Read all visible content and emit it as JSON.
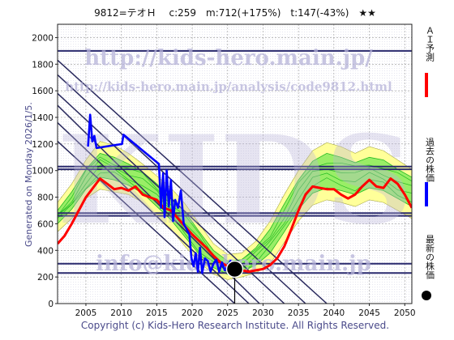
{
  "header": {
    "title": "9812=テオＨ　 c:259　m:712(+175%)　t:147(-43%)　★★"
  },
  "side_label": "Generated on Monday 2026/1/5.",
  "copyright": "Copyright (c) Kids-Hero Research Institute. All Rights Reserved.",
  "watermark": {
    "big": "KIDS",
    "url1": "http://kids-hero.main.jp/",
    "url2": "http://kids-hero.main.jp/analysis/code9812.html",
    "email": "info@kids-hero.main.jp"
  },
  "legend": [
    {
      "label": "ＡＩ予測",
      "color": "#ff0000",
      "kind": "line"
    },
    {
      "label": "過去の株価",
      "color": "#0000ff",
      "kind": "line"
    },
    {
      "label": "最新の株価",
      "color": "#000000",
      "kind": "dot"
    }
  ],
  "colors": {
    "ai": "#ff0000",
    "past": "#0000ff",
    "band_outer": "#ffff99",
    "band_inner": "#99ee66",
    "band_line": "#22bb22",
    "hline": "#2a2a6e",
    "diag": "#2a2a5e",
    "grid": "#999999"
  },
  "chart_data": {
    "type": "line",
    "title": "9812=テオＨ　 c:259　m:712(+175%)　t:147(-43%)　★★",
    "xlim": [
      2001,
      2051
    ],
    "ylim": [
      0,
      2100
    ],
    "x_ticks": [
      2005,
      2010,
      2015,
      2020,
      2025,
      2030,
      2035,
      2040,
      2045,
      2050
    ],
    "y_ticks": [
      0,
      200,
      400,
      600,
      800,
      1000,
      1200,
      1400,
      1600,
      1800,
      2000
    ],
    "grid": true,
    "horizontal_levels": [
      1900,
      1030,
      1010,
      680,
      660,
      300,
      230
    ],
    "diagonal_lines": [
      [
        [
          2001,
          1580
        ],
        [
          2033,
          0
        ]
      ],
      [
        [
          2001,
          1490
        ],
        [
          2029.5,
          0
        ]
      ],
      [
        [
          2001,
          1360
        ],
        [
          2028,
          0
        ]
      ],
      [
        [
          2001,
          1720
        ],
        [
          2036,
          0
        ]
      ],
      [
        [
          2001,
          1830
        ],
        [
          2039,
          0
        ]
      ],
      [
        [
          2001,
          1220
        ],
        [
          2026,
          0
        ]
      ]
    ],
    "band_outer_upper": [
      [
        2001,
        760
      ],
      [
        2003,
        900
      ],
      [
        2005,
        1080
      ],
      [
        2007,
        1220
      ],
      [
        2009,
        1190
      ],
      [
        2011,
        1130
      ],
      [
        2013,
        1050
      ],
      [
        2015,
        960
      ],
      [
        2017,
        870
      ],
      [
        2019,
        750
      ],
      [
        2021,
        600
      ],
      [
        2023,
        450
      ],
      [
        2025,
        370
      ],
      [
        2027,
        380
      ],
      [
        2029,
        470
      ],
      [
        2031,
        620
      ],
      [
        2033,
        820
      ],
      [
        2035,
        1000
      ],
      [
        2037,
        1150
      ],
      [
        2039,
        1210
      ],
      [
        2041,
        1180
      ],
      [
        2043,
        1130
      ],
      [
        2045,
        1180
      ],
      [
        2047,
        1150
      ],
      [
        2049,
        1080
      ],
      [
        2051,
        1010
      ]
    ],
    "band_outer_lower": [
      [
        2001,
        540
      ],
      [
        2003,
        640
      ],
      [
        2005,
        790
      ],
      [
        2007,
        860
      ],
      [
        2009,
        840
      ],
      [
        2011,
        820
      ],
      [
        2013,
        760
      ],
      [
        2015,
        660
      ],
      [
        2017,
        560
      ],
      [
        2019,
        430
      ],
      [
        2021,
        310
      ],
      [
        2023,
        220
      ],
      [
        2025,
        180
      ],
      [
        2027,
        200
      ],
      [
        2029,
        230
      ],
      [
        2031,
        300
      ],
      [
        2033,
        460
      ],
      [
        2035,
        620
      ],
      [
        2037,
        740
      ],
      [
        2039,
        780
      ],
      [
        2041,
        760
      ],
      [
        2043,
        730
      ],
      [
        2045,
        780
      ],
      [
        2047,
        760
      ],
      [
        2049,
        700
      ],
      [
        2051,
        640
      ]
    ],
    "band_inner_upper": [
      [
        2001,
        700
      ],
      [
        2003,
        840
      ],
      [
        2005,
        1010
      ],
      [
        2007,
        1130
      ],
      [
        2009,
        1100
      ],
      [
        2011,
        1050
      ],
      [
        2013,
        990
      ],
      [
        2015,
        900
      ],
      [
        2017,
        800
      ],
      [
        2019,
        690
      ],
      [
        2021,
        540
      ],
      [
        2023,
        400
      ],
      [
        2025,
        320
      ],
      [
        2027,
        330
      ],
      [
        2029,
        420
      ],
      [
        2031,
        560
      ],
      [
        2033,
        750
      ],
      [
        2035,
        930
      ],
      [
        2037,
        1070
      ],
      [
        2039,
        1130
      ],
      [
        2041,
        1100
      ],
      [
        2043,
        1060
      ],
      [
        2045,
        1100
      ],
      [
        2047,
        1080
      ],
      [
        2049,
        1010
      ],
      [
        2051,
        950
      ]
    ],
    "band_inner_lower": [
      [
        2001,
        600
      ],
      [
        2003,
        710
      ],
      [
        2005,
        860
      ],
      [
        2007,
        950
      ],
      [
        2009,
        930
      ],
      [
        2011,
        890
      ],
      [
        2013,
        830
      ],
      [
        2015,
        730
      ],
      [
        2017,
        630
      ],
      [
        2019,
        500
      ],
      [
        2021,
        370
      ],
      [
        2023,
        270
      ],
      [
        2025,
        220
      ],
      [
        2027,
        240
      ],
      [
        2029,
        290
      ],
      [
        2031,
        380
      ],
      [
        2033,
        540
      ],
      [
        2035,
        710
      ],
      [
        2037,
        830
      ],
      [
        2039,
        870
      ],
      [
        2041,
        850
      ],
      [
        2043,
        820
      ],
      [
        2045,
        870
      ],
      [
        2047,
        850
      ],
      [
        2049,
        790
      ],
      [
        2051,
        730
      ]
    ],
    "series": [
      {
        "name": "ＡＩ予測",
        "color": "#ff0000",
        "points": [
          [
            2001,
            450
          ],
          [
            2002,
            510
          ],
          [
            2003,
            600
          ],
          [
            2004,
            700
          ],
          [
            2005,
            800
          ],
          [
            2006,
            870
          ],
          [
            2007,
            940
          ],
          [
            2008,
            900
          ],
          [
            2009,
            860
          ],
          [
            2010,
            870
          ],
          [
            2011,
            850
          ],
          [
            2012,
            880
          ],
          [
            2013,
            820
          ],
          [
            2014,
            800
          ],
          [
            2015,
            780
          ],
          [
            2016,
            720
          ],
          [
            2017,
            700
          ],
          [
            2018,
            640
          ],
          [
            2019,
            580
          ],
          [
            2020,
            520
          ],
          [
            2021,
            470
          ],
          [
            2022,
            420
          ],
          [
            2023,
            360
          ],
          [
            2024,
            310
          ],
          [
            2025,
            280
          ],
          [
            2026,
            270
          ],
          [
            2027,
            250
          ],
          [
            2028,
            240
          ],
          [
            2029,
            250
          ],
          [
            2030,
            260
          ],
          [
            2031,
            290
          ],
          [
            2032,
            340
          ],
          [
            2033,
            430
          ],
          [
            2034,
            560
          ],
          [
            2035,
            700
          ],
          [
            2036,
            820
          ],
          [
            2037,
            880
          ],
          [
            2038,
            870
          ],
          [
            2039,
            860
          ],
          [
            2040,
            860
          ],
          [
            2041,
            820
          ],
          [
            2042,
            790
          ],
          [
            2043,
            820
          ],
          [
            2044,
            880
          ],
          [
            2045,
            930
          ],
          [
            2046,
            880
          ],
          [
            2047,
            870
          ],
          [
            2048,
            940
          ],
          [
            2049,
            900
          ],
          [
            2050,
            820
          ],
          [
            2051,
            720
          ]
        ]
      },
      {
        "name": "過去の株価",
        "color": "#0000ff",
        "points": [
          [
            2005.3,
            1180
          ],
          [
            2005.6,
            1420
          ],
          [
            2005.9,
            1220
          ],
          [
            2006.2,
            1260
          ],
          [
            2006.5,
            1170
          ],
          [
            2010.1,
            1200
          ],
          [
            2010.3,
            1270
          ],
          [
            2015.3,
            1050
          ],
          [
            2015.6,
            720
          ],
          [
            2015.9,
            980
          ],
          [
            2016.1,
            650
          ],
          [
            2016.4,
            1000
          ],
          [
            2016.7,
            730
          ],
          [
            2017.0,
            930
          ],
          [
            2017.3,
            620
          ],
          [
            2017.6,
            780
          ],
          [
            2018.0,
            720
          ],
          [
            2018.4,
            850
          ],
          [
            2018.8,
            600
          ],
          [
            2019.2,
            560
          ],
          [
            2019.6,
            520
          ],
          [
            2019.9,
            340
          ],
          [
            2020.2,
            280
          ],
          [
            2020.5,
            380
          ],
          [
            2020.8,
            240
          ],
          [
            2021.1,
            420
          ],
          [
            2021.4,
            230
          ],
          [
            2021.8,
            340
          ],
          [
            2022.2,
            320
          ],
          [
            2022.6,
            240
          ],
          [
            2023.0,
            300
          ],
          [
            2023.4,
            330
          ],
          [
            2023.8,
            240
          ],
          [
            2024.2,
            310
          ],
          [
            2024.6,
            250
          ],
          [
            2025.0,
            280
          ],
          [
            2025.4,
            320
          ],
          [
            2025.8,
            260
          ],
          [
            2026.0,
            259
          ]
        ]
      }
    ],
    "latest": {
      "x": 2026.0,
      "y": 259,
      "label": "最新の株価"
    }
  }
}
